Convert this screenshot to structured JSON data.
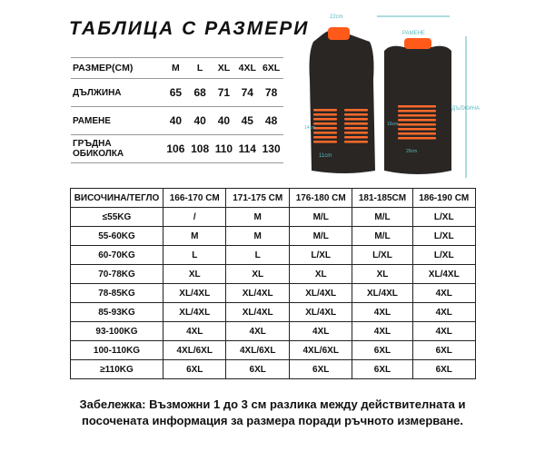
{
  "title": "ТАБЛИЦА С РАЗМЕРИ",
  "measurements": {
    "header": [
      "РАЗМЕР(CM)",
      "M",
      "L",
      "XL",
      "4XL",
      "6XL"
    ],
    "rows": [
      {
        "label": "ДЪЛЖИНА",
        "values": [
          "65",
          "68",
          "71",
          "74",
          "78"
        ]
      },
      {
        "label": "РАМЕНЕ",
        "values": [
          "40",
          "40",
          "40",
          "45",
          "48"
        ]
      },
      {
        "label": "ГРЪДНА ОБИКОЛКА",
        "values": [
          "106",
          "108",
          "110",
          "114",
          "130"
        ]
      }
    ]
  },
  "diagram": {
    "collar": "22cm",
    "pad_width_front": "11cm",
    "pad_height": "16cm",
    "pad_side": "14cm",
    "pad_width_back": "29cm",
    "shoulder": "РАМЕНЕ",
    "length": "ДЪЛЖИНА",
    "heater_color": "#ff5a1a",
    "vest_color": "#2a2624",
    "measure_color": "#5bb8bf"
  },
  "size_table": {
    "header": [
      "ВИСОЧИНА/ТЕГЛО",
      "166-170 CM",
      "171-175 CM",
      "176-180 CM",
      "181-185CM",
      "186-190 CM"
    ],
    "rows": [
      [
        "≤55KG",
        "/",
        "M",
        "M/L",
        "M/L",
        "L/XL"
      ],
      [
        "55-60KG",
        "M",
        "M",
        "M/L",
        "M/L",
        "L/XL"
      ],
      [
        "60-70KG",
        "L",
        "L",
        "L/XL",
        "L/XL",
        "L/XL"
      ],
      [
        "70-78KG",
        "XL",
        "XL",
        "XL",
        "XL",
        "XL/4XL"
      ],
      [
        "78-85KG",
        "XL/4XL",
        "XL/4XL",
        "XL/4XL",
        "XL/4XL",
        "4XL"
      ],
      [
        "85-93KG",
        "XL/4XL",
        "XL/4XL",
        "XL/4XL",
        "4XL",
        "4XL"
      ],
      [
        "93-100KG",
        "4XL",
        "4XL",
        "4XL",
        "4XL",
        "4XL"
      ],
      [
        "100-110KG",
        "4XL/6XL",
        "4XL/6XL",
        "4XL/6XL",
        "6XL",
        "6XL"
      ],
      [
        "≥110KG",
        "6XL",
        "6XL",
        "6XL",
        "6XL",
        "6XL"
      ]
    ]
  },
  "note": "Забележка: Възможни 1 до 3 см разлика между действителната и посочената информация за размера поради ръчното измерване."
}
